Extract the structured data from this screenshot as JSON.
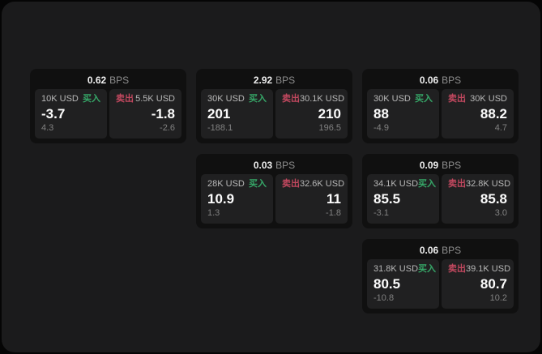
{
  "labels": {
    "bps_unit": "BPS",
    "buy": "买入",
    "sell": "卖出"
  },
  "colors": {
    "buy": "#36a768",
    "sell": "#c2485f",
    "panel": "#1b1b1c",
    "card": "#101010",
    "tile": "#202021"
  },
  "cards": [
    {
      "bps": "0.62",
      "buy": {
        "amount": "10K USD",
        "price": "-3.7",
        "change": "4.3"
      },
      "sell": {
        "amount": "5.5K USD",
        "price": "-1.8",
        "change": "-2.6"
      }
    },
    {
      "bps": "2.92",
      "buy": {
        "amount": "30K USD",
        "price": "201",
        "change": "-188.1"
      },
      "sell": {
        "amount": "30.1K USD",
        "price": "210",
        "change": "196.5"
      }
    },
    {
      "bps": "0.06",
      "buy": {
        "amount": "30K USD",
        "price": "88",
        "change": "-4.9"
      },
      "sell": {
        "amount": "30K USD",
        "price": "88.2",
        "change": "4.7"
      }
    },
    {
      "bps": "0.03",
      "buy": {
        "amount": "28K USD",
        "price": "10.9",
        "change": "1.3"
      },
      "sell": {
        "amount": "32.6K USD",
        "price": "11",
        "change": "-1.8"
      }
    },
    {
      "bps": "0.09",
      "buy": {
        "amount": "34.1K USD",
        "price": "85.5",
        "change": "-3.1"
      },
      "sell": {
        "amount": "32.8K USD",
        "price": "85.8",
        "change": "3.0"
      }
    },
    {
      "bps": "0.06",
      "buy": {
        "amount": "31.8K USD",
        "price": "80.5",
        "change": "-10.8"
      },
      "sell": {
        "amount": "39.1K USD",
        "price": "80.7",
        "change": "10.2"
      }
    }
  ]
}
